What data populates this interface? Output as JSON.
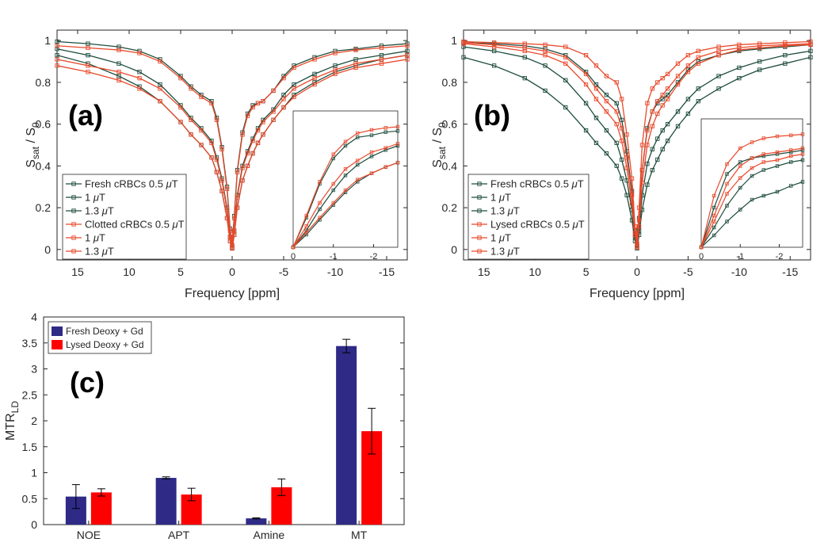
{
  "colors": {
    "fresh": "#1e4d3d",
    "red": "#e8492b",
    "deoxy_bar": "#2e2a86",
    "lysed_bar": "#ff0000"
  },
  "chart_data": [
    {
      "type": "line",
      "panel": "(a)",
      "xlabel": "Frequency [ppm]",
      "ylabel_main": "S",
      "ylabel_sub1": "sat",
      "ylabel_mid": " / S",
      "ylabel_sub2": "0",
      "xlim": [
        17,
        -17
      ],
      "ylim": [
        -0.05,
        1.05
      ],
      "xticks": [
        15,
        10,
        5,
        0,
        -5,
        -10,
        -15
      ],
      "yticks": [
        0,
        0.2,
        0.4,
        0.6,
        0.8,
        1
      ],
      "inset": {
        "xlim": [
          0,
          -2.6
        ],
        "ylim": [
          0,
          0.6
        ],
        "xticks": [
          0,
          -1,
          -2
        ]
      },
      "series": [
        {
          "name": "Fresh cRBCs 0.5 μT",
          "label_main": "Fresh cRBCs 0.5 ",
          "group": "fresh",
          "x": [
            17,
            14,
            11,
            9,
            7,
            5,
            4,
            3,
            2,
            1.5,
            1,
            0.5,
            0.2,
            0,
            -0.2,
            -0.5,
            -1,
            -1.5,
            -2,
            -2.5,
            -3,
            -4,
            -5,
            -6,
            -8,
            -10,
            -12,
            -14.5,
            -17
          ],
          "y": [
            0.995,
            0.985,
            0.97,
            0.95,
            0.91,
            0.83,
            0.78,
            0.74,
            0.71,
            0.63,
            0.49,
            0.3,
            0.1,
            0.02,
            0.16,
            0.38,
            0.56,
            0.65,
            0.69,
            0.7,
            0.71,
            0.76,
            0.83,
            0.88,
            0.92,
            0.95,
            0.96,
            0.975,
            0.985
          ],
          "inset_y": [
            0,
            0.14,
            0.3,
            0.42,
            0.48,
            0.52,
            0.53,
            0.545,
            0.55
          ]
        },
        {
          "name": "1 μT",
          "label_main": " 1 ",
          "group": "fresh",
          "x": [
            17,
            14,
            11,
            9,
            7,
            5,
            4,
            3,
            2,
            1.5,
            1,
            0.5,
            0.2,
            0,
            -0.2,
            -0.5,
            -1,
            -1.5,
            -2,
            -2.5,
            -3,
            -4,
            -5,
            -6,
            -8,
            -10,
            -12,
            -14.5,
            -17
          ],
          "y": [
            0.96,
            0.93,
            0.89,
            0.85,
            0.79,
            0.69,
            0.63,
            0.58,
            0.52,
            0.44,
            0.34,
            0.2,
            0.06,
            0.01,
            0.09,
            0.26,
            0.4,
            0.47,
            0.53,
            0.58,
            0.62,
            0.67,
            0.74,
            0.79,
            0.84,
            0.88,
            0.91,
            0.93,
            0.95
          ],
          "inset_y": [
            0,
            0.08,
            0.18,
            0.27,
            0.34,
            0.39,
            0.43,
            0.46,
            0.48
          ]
        },
        {
          "name": "1.3 μT",
          "label_main": "1.3 ",
          "group": "fresh",
          "x": [
            17,
            14,
            11,
            9,
            7,
            5,
            4,
            3,
            2,
            1.5,
            1,
            0.5,
            0.2,
            0,
            -0.2,
            -0.5,
            -1,
            -1.5,
            -2,
            -2.5,
            -3,
            -4,
            -5,
            -6,
            -8,
            -10,
            -12,
            -14.5,
            -17
          ],
          "y": [
            0.93,
            0.89,
            0.83,
            0.78,
            0.71,
            0.61,
            0.55,
            0.5,
            0.44,
            0.37,
            0.28,
            0.15,
            0.04,
            0.005,
            0.07,
            0.2,
            0.33,
            0.4,
            0.46,
            0.51,
            0.55,
            0.62,
            0.68,
            0.74,
            0.8,
            0.85,
            0.88,
            0.91,
            0.93
          ],
          "inset_y": [
            0,
            0.06,
            0.13,
            0.2,
            0.26,
            0.31,
            0.35,
            0.38,
            0.4
          ]
        },
        {
          "name": "Clotted cRBCs 0.5 μT",
          "label_main": "Clotted cRBCs 0.5 ",
          "group": "red",
          "x": [
            17,
            14,
            11,
            9,
            7,
            5,
            4,
            3,
            2,
            1.5,
            1,
            0.5,
            0.2,
            0,
            -0.2,
            -0.5,
            -1,
            -1.5,
            -2,
            -2.5,
            -3,
            -4,
            -5,
            -6,
            -8,
            -10,
            -12,
            -14.5,
            -17
          ],
          "y": [
            0.975,
            0.965,
            0.955,
            0.94,
            0.9,
            0.82,
            0.77,
            0.73,
            0.7,
            0.62,
            0.48,
            0.29,
            0.09,
            0.02,
            0.15,
            0.37,
            0.55,
            0.64,
            0.68,
            0.7,
            0.71,
            0.76,
            0.82,
            0.87,
            0.91,
            0.94,
            0.955,
            0.965,
            0.975
          ],
          "inset_y": [
            0,
            0.15,
            0.31,
            0.44,
            0.5,
            0.54,
            0.555,
            0.565,
            0.57
          ]
        },
        {
          "name": "1 μT",
          "label_main": " 1 ",
          "group": "red",
          "x": [
            17,
            14,
            11,
            9,
            7,
            5,
            4,
            3,
            2,
            1.5,
            1,
            0.5,
            0.2,
            0,
            -0.2,
            -0.5,
            -1,
            -1.5,
            -2,
            -2.5,
            -3,
            -4,
            -5,
            -6,
            -8,
            -10,
            -12,
            -14.5,
            -17
          ],
          "y": [
            0.91,
            0.88,
            0.85,
            0.82,
            0.77,
            0.68,
            0.62,
            0.57,
            0.51,
            0.43,
            0.33,
            0.19,
            0.06,
            0.01,
            0.09,
            0.25,
            0.39,
            0.46,
            0.52,
            0.57,
            0.61,
            0.66,
            0.72,
            0.77,
            0.82,
            0.86,
            0.89,
            0.91,
            0.93
          ],
          "inset_y": [
            0,
            0.1,
            0.21,
            0.3,
            0.37,
            0.41,
            0.45,
            0.47,
            0.49
          ]
        },
        {
          "name": "1.3 μT",
          "label_main": "1.3 ",
          "group": "red",
          "x": [
            17,
            14,
            11,
            9,
            7,
            5,
            4,
            3,
            2,
            1.5,
            1,
            0.5,
            0.2,
            0,
            -0.2,
            -0.5,
            -1,
            -1.5,
            -2,
            -2.5,
            -3,
            -4,
            -5,
            -6,
            -8,
            -10,
            -12,
            -14.5,
            -17
          ],
          "y": [
            0.88,
            0.85,
            0.81,
            0.77,
            0.71,
            0.61,
            0.55,
            0.5,
            0.44,
            0.37,
            0.28,
            0.15,
            0.04,
            0.005,
            0.07,
            0.2,
            0.33,
            0.4,
            0.46,
            0.51,
            0.55,
            0.62,
            0.68,
            0.73,
            0.79,
            0.84,
            0.87,
            0.89,
            0.91
          ],
          "inset_y": [
            0,
            0.07,
            0.14,
            0.21,
            0.27,
            0.32,
            0.35,
            0.38,
            0.4
          ]
        }
      ]
    },
    {
      "type": "line",
      "panel": "(b)",
      "xlabel": "Frequency [ppm]",
      "ylabel_main": "S",
      "ylabel_sub1": "sat",
      "ylabel_mid": " / S",
      "ylabel_sub2": "0",
      "xlim": [
        17,
        -17
      ],
      "ylim": [
        -0.05,
        1.05
      ],
      "xticks": [
        15,
        10,
        5,
        0,
        -5,
        -10,
        -15
      ],
      "yticks": [
        0,
        0.2,
        0.4,
        0.6,
        0.8,
        1
      ],
      "inset": {
        "xlim": [
          0,
          -2.6
        ],
        "ylim": [
          0,
          0.6
        ],
        "xticks": [
          0,
          -1,
          -2
        ]
      },
      "series": [
        {
          "name": "Fresh cRBCs 0.5 μT",
          "label_main": "Fresh cRBCs 0.5 ",
          "group": "fresh",
          "x": [
            17,
            14,
            11,
            9,
            7,
            5,
            4,
            3,
            2,
            1.5,
            1,
            0.5,
            0.2,
            0,
            -0.2,
            -0.5,
            -1,
            -1.5,
            -2,
            -2.5,
            -3,
            -4,
            -5,
            -6,
            -8,
            -10,
            -12,
            -14.5,
            -17
          ],
          "y": [
            0.99,
            0.985,
            0.975,
            0.96,
            0.93,
            0.85,
            0.79,
            0.74,
            0.7,
            0.62,
            0.47,
            0.28,
            0.09,
            0.02,
            0.15,
            0.38,
            0.58,
            0.66,
            0.7,
            0.72,
            0.74,
            0.8,
            0.86,
            0.9,
            0.93,
            0.95,
            0.96,
            0.97,
            0.98
          ],
          "inset_y": [
            0,
            0.2,
            0.37,
            0.43,
            0.45,
            0.46,
            0.47,
            0.48,
            0.49
          ]
        },
        {
          "name": "1 μT",
          "label_main": " 1 ",
          "group": "fresh",
          "x": [
            17,
            14,
            11,
            9,
            7,
            5,
            4,
            3,
            2,
            1.5,
            1,
            0.5,
            0.2,
            0,
            -0.2,
            -0.5,
            -1,
            -1.5,
            -2,
            -2.5,
            -3,
            -4,
            -5,
            -6,
            -8,
            -10,
            -12,
            -14.5,
            -17
          ],
          "y": [
            0.97,
            0.95,
            0.92,
            0.88,
            0.81,
            0.7,
            0.63,
            0.57,
            0.51,
            0.43,
            0.33,
            0.19,
            0.06,
            0.01,
            0.09,
            0.26,
            0.41,
            0.48,
            0.53,
            0.57,
            0.6,
            0.66,
            0.72,
            0.77,
            0.83,
            0.87,
            0.9,
            0.93,
            0.95
          ],
          "inset_y": [
            0,
            0.1,
            0.21,
            0.3,
            0.36,
            0.39,
            0.41,
            0.43,
            0.44
          ]
        },
        {
          "name": "1.3 μT",
          "label_main": "1.3 ",
          "group": "fresh",
          "x": [
            17,
            14,
            11,
            9,
            7,
            5,
            4,
            3,
            2,
            1.5,
            1,
            0.5,
            0.2,
            0,
            -0.2,
            -0.5,
            -1,
            -1.5,
            -2,
            -2.5,
            -3,
            -4,
            -5,
            -6,
            -8,
            -10,
            -12,
            -14.5,
            -17
          ],
          "y": [
            0.92,
            0.88,
            0.82,
            0.76,
            0.68,
            0.57,
            0.51,
            0.46,
            0.4,
            0.34,
            0.26,
            0.14,
            0.04,
            0.005,
            0.07,
            0.19,
            0.31,
            0.38,
            0.43,
            0.48,
            0.52,
            0.59,
            0.65,
            0.71,
            0.77,
            0.82,
            0.86,
            0.89,
            0.92
          ],
          "inset_y": [
            0,
            0.06,
            0.13,
            0.19,
            0.24,
            0.26,
            0.28,
            0.31,
            0.33
          ]
        },
        {
          "name": "Lysed cRBCs 0.5 μT",
          "label_main": "Lysed cRBCs 0.5 ",
          "group": "red",
          "x": [
            17,
            14,
            11,
            9,
            7,
            5,
            4,
            3,
            2,
            1.5,
            1,
            0.5,
            0.2,
            0,
            -0.2,
            -0.5,
            -1,
            -1.5,
            -2,
            -2.5,
            -3,
            -4,
            -5,
            -6,
            -8,
            -10,
            -12,
            -14.5,
            -17
          ],
          "y": [
            0.995,
            0.99,
            0.985,
            0.98,
            0.97,
            0.93,
            0.88,
            0.83,
            0.8,
            0.72,
            0.55,
            0.34,
            0.11,
            0.03,
            0.2,
            0.5,
            0.7,
            0.77,
            0.8,
            0.82,
            0.84,
            0.89,
            0.93,
            0.95,
            0.97,
            0.98,
            0.985,
            0.99,
            0.995
          ],
          "inset_y": [
            0,
            0.26,
            0.42,
            0.5,
            0.53,
            0.55,
            0.56,
            0.565,
            0.57
          ]
        },
        {
          "name": "1 μT",
          "label_main": " 1 ",
          "group": "red",
          "x": [
            17,
            14,
            11,
            9,
            7,
            5,
            4,
            3,
            2,
            1.5,
            1,
            0.5,
            0.2,
            0,
            -0.2,
            -0.5,
            -1,
            -1.5,
            -2,
            -2.5,
            -3,
            -4,
            -5,
            -6,
            -8,
            -10,
            -12,
            -14.5,
            -17
          ],
          "y": [
            0.99,
            0.98,
            0.965,
            0.95,
            0.92,
            0.84,
            0.77,
            0.71,
            0.66,
            0.58,
            0.44,
            0.26,
            0.08,
            0.015,
            0.14,
            0.38,
            0.57,
            0.66,
            0.71,
            0.74,
            0.77,
            0.83,
            0.88,
            0.92,
            0.95,
            0.965,
            0.975,
            0.98,
            0.985
          ],
          "inset_y": [
            0,
            0.16,
            0.32,
            0.41,
            0.45,
            0.47,
            0.48,
            0.49,
            0.5
          ]
        },
        {
          "name": "1.3 μT",
          "label_main": "1.3 ",
          "group": "red",
          "x": [
            17,
            14,
            11,
            9,
            7,
            5,
            4,
            3,
            2,
            1.5,
            1,
            0.5,
            0.2,
            0,
            -0.2,
            -0.5,
            -1,
            -1.5,
            -2,
            -2.5,
            -3,
            -4,
            -5,
            -6,
            -8,
            -10,
            -12,
            -14.5,
            -17
          ],
          "y": [
            0.985,
            0.97,
            0.95,
            0.93,
            0.89,
            0.79,
            0.72,
            0.66,
            0.6,
            0.52,
            0.39,
            0.22,
            0.07,
            0.01,
            0.11,
            0.32,
            0.5,
            0.59,
            0.65,
            0.69,
            0.72,
            0.79,
            0.85,
            0.89,
            0.93,
            0.955,
            0.965,
            0.975,
            0.98
          ],
          "inset_y": [
            0,
            0.13,
            0.27,
            0.35,
            0.4,
            0.43,
            0.44,
            0.46,
            0.47
          ]
        }
      ]
    },
    {
      "type": "bar",
      "panel": "(c)",
      "ylabel_main": "MTR",
      "ylabel_sub": "LD",
      "categories": [
        "NOE",
        "APT",
        "Amine",
        "MT"
      ],
      "ylim": [
        0,
        4
      ],
      "yticks": [
        0,
        0.5,
        1,
        1.5,
        2,
        2.5,
        3,
        3.5,
        4
      ],
      "series": [
        {
          "name": "Fresh Deoxy + Gd",
          "group": "deoxy_bar",
          "values": [
            0.54,
            0.9,
            0.12,
            3.44
          ],
          "errors": [
            0.23,
            0.02,
            0.01,
            0.13
          ]
        },
        {
          "name": "Lysed Deoxy + Gd",
          "group": "lysed_bar",
          "values": [
            0.62,
            0.58,
            0.72,
            1.8
          ],
          "errors": [
            0.07,
            0.12,
            0.16,
            0.44
          ]
        }
      ]
    }
  ]
}
